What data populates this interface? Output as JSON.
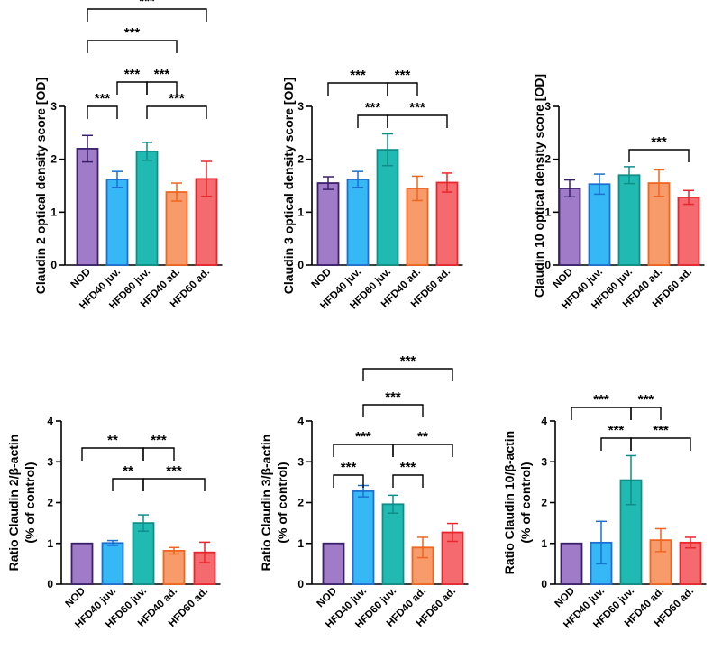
{
  "colors": {
    "NOD": "#a07cc8",
    "HFD40 juv.": "#35b8f5",
    "HFD60 juv.": "#21bab3",
    "HFD40 ad.": "#f79b6a",
    "HFD60 ad.": "#f56a6e",
    "NOD_edge": "#3a1f6a",
    "HFD40 juv._edge": "#1d6fd0",
    "HFD60 juv._edge": "#0f8e88",
    "HFD40 ad._edge": "#f0651f",
    "HFD60 ad._edge": "#e8262d"
  },
  "chart_data": [
    {
      "type": "bar",
      "ylabel": "Claudin 2 optical density score [OD]",
      "categories": [
        "NOD",
        "HFD40 juv.",
        "HFD60 juv.",
        "HFD40 ad.",
        "HFD60 ad."
      ],
      "values": [
        2.2,
        1.62,
        2.15,
        1.38,
        1.63
      ],
      "errors": [
        0.25,
        0.15,
        0.17,
        0.17,
        0.33
      ],
      "ylim": [
        0,
        3
      ],
      "yticks": [
        "0",
        "1",
        "2",
        "3"
      ],
      "significance": [
        {
          "from": 0,
          "to": 1,
          "label": "***"
        },
        {
          "from": 1,
          "to": 2,
          "label": "***"
        },
        {
          "from": 2,
          "to": 3,
          "label": "***"
        },
        {
          "from": 2,
          "to": 4,
          "label": "***"
        },
        {
          "from": 0,
          "to": 3,
          "label": "***"
        },
        {
          "from": 0,
          "to": 4,
          "label": "***"
        }
      ]
    },
    {
      "type": "bar",
      "ylabel": "Claudin 3 optical density score [OD]",
      "categories": [
        "NOD",
        "HFD40 juv.",
        "HFD60 juv.",
        "HFD40 ad.",
        "HFD60 ad."
      ],
      "values": [
        1.55,
        1.62,
        2.18,
        1.45,
        1.56
      ],
      "errors": [
        0.12,
        0.15,
        0.3,
        0.23,
        0.18
      ],
      "ylim": [
        0,
        3
      ],
      "yticks": [
        "0",
        "1",
        "2",
        "3"
      ],
      "significance": [
        {
          "from": 1,
          "to": 2,
          "label": "***"
        },
        {
          "from": 2,
          "to": 4,
          "label": "***"
        },
        {
          "from": 0,
          "to": 2,
          "label": "***"
        },
        {
          "from": 2,
          "to": 3,
          "label": "***"
        }
      ]
    },
    {
      "type": "bar",
      "ylabel": "Claudin 10 optical density score [OD]",
      "categories": [
        "NOD",
        "HFD40 juv.",
        "HFD60 juv.",
        "HFD40 ad.",
        "HFD60 ad."
      ],
      "values": [
        1.45,
        1.53,
        1.7,
        1.55,
        1.28
      ],
      "errors": [
        0.16,
        0.19,
        0.16,
        0.25,
        0.13
      ],
      "ylim": [
        0,
        3
      ],
      "yticks": [
        "0",
        "1",
        "2",
        "3"
      ],
      "significance": [
        {
          "from": 2,
          "to": 4,
          "label": "***"
        }
      ]
    },
    {
      "type": "bar",
      "ylabel": "Ratio Claudin 2/β-actin\n(% of control)",
      "categories": [
        "NOD",
        "HFD40 juv.",
        "HFD60 juv.",
        "HFD40 ad.",
        "HFD60 ad."
      ],
      "values": [
        1.0,
        1.01,
        1.5,
        0.82,
        0.78
      ],
      "errors": [
        0.0,
        0.06,
        0.2,
        0.08,
        0.25
      ],
      "ylim": [
        0,
        4
      ],
      "yticks": [
        "0",
        "1",
        "2",
        "3",
        "4"
      ],
      "significance": [
        {
          "from": 1,
          "to": 2,
          "label": "**"
        },
        {
          "from": 2,
          "to": 4,
          "label": "***"
        },
        {
          "from": 0,
          "to": 2,
          "label": "**"
        },
        {
          "from": 2,
          "to": 3,
          "label": "***"
        }
      ]
    },
    {
      "type": "bar",
      "ylabel": "Ratio Claudin 3/β-actin\n(% of control)",
      "categories": [
        "NOD",
        "HFD40 juv.",
        "HFD60 juv.",
        "HFD40 ad.",
        "HFD60 ad."
      ],
      "values": [
        1.0,
        2.28,
        1.96,
        0.9,
        1.27
      ],
      "errors": [
        0.0,
        0.14,
        0.22,
        0.25,
        0.22
      ],
      "ylim": [
        0,
        4
      ],
      "yticks": [
        "0",
        "1",
        "2",
        "3",
        "4"
      ],
      "significance": [
        {
          "from": 0,
          "to": 1,
          "label": "***"
        },
        {
          "from": 2,
          "to": 3,
          "label": "***"
        },
        {
          "from": 0,
          "to": 2,
          "label": "***"
        },
        {
          "from": 2,
          "to": 4,
          "label": "**"
        },
        {
          "from": 1,
          "to": 3,
          "label": "***"
        },
        {
          "from": 1,
          "to": 4,
          "label": "***"
        }
      ]
    },
    {
      "type": "bar",
      "ylabel": "Ratio Claudin 10/β-actin\n(% of control)",
      "categories": [
        "NOD",
        "HFD40 juv.",
        "HFD60 juv.",
        "HFD40 ad.",
        "HFD60 ad."
      ],
      "values": [
        1.0,
        1.02,
        2.55,
        1.08,
        1.02
      ],
      "errors": [
        0.0,
        0.52,
        0.6,
        0.28,
        0.13
      ],
      "ylim": [
        0,
        4
      ],
      "yticks": [
        "0",
        "1",
        "2",
        "3",
        "4"
      ],
      "significance": [
        {
          "from": 1,
          "to": 2,
          "label": "***"
        },
        {
          "from": 2,
          "to": 4,
          "label": "***"
        },
        {
          "from": 0,
          "to": 2,
          "label": "***"
        },
        {
          "from": 2,
          "to": 3,
          "label": "***"
        }
      ]
    }
  ]
}
